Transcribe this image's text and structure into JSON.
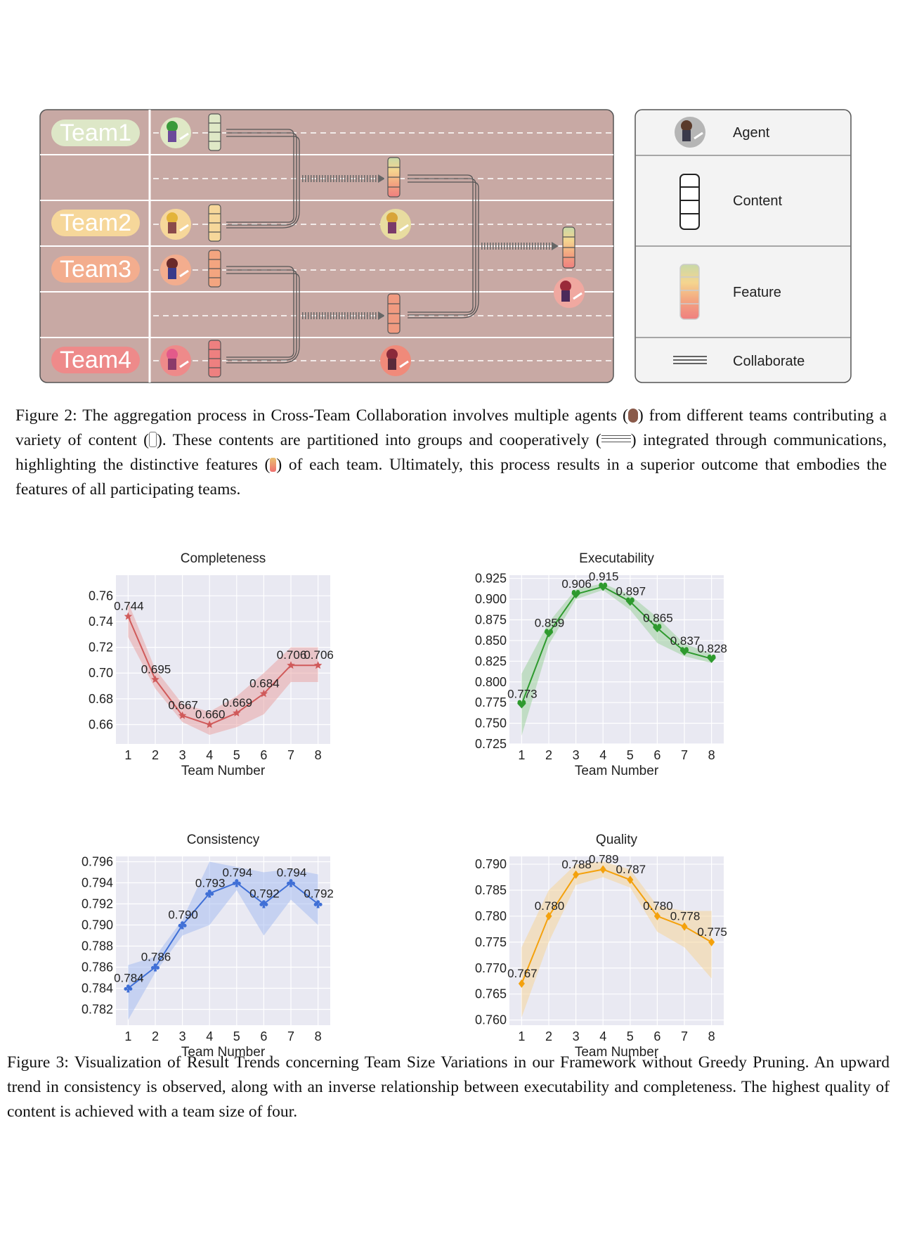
{
  "figure2": {
    "teams": [
      "Team1",
      "Team2",
      "Team3",
      "Team4"
    ],
    "legend": {
      "agent": "Agent",
      "content": "Content",
      "feature": "Feature",
      "collaborate": "Collaborate"
    },
    "colors": {
      "panel": "#c8a9a4",
      "team1": "#dde7c7",
      "team2": "#f6d79a",
      "team3": "#f3ad8e",
      "team4": "#ee8a8a"
    },
    "caption": {
      "p1": "Figure 2: The aggregation process in Cross-Team Collaboration involves multiple agents (",
      "p2": ") from different teams contributing a variety of content (",
      "p3": "). These contents are partitioned into groups and cooperatively (",
      "p4": ") integrated through communications, highlighting the distinctive features (",
      "p5": ") of each team. Ultimately, this process results in a superior outcome that embodies the features of all participating teams."
    }
  },
  "figure3": {
    "caption": "Figure 3: Visualization of Result Trends concerning Team Size Variations in our Framework without Greedy Pruning. An upward trend in consistency is observed, along with an inverse relationship between executability and completeness. The highest quality of content is achieved with a team size of four."
  },
  "chart_data": [
    {
      "type": "line",
      "title": "Completeness",
      "xlabel": "Team Number",
      "ylabel": "",
      "x": [
        1,
        2,
        3,
        4,
        5,
        6,
        7,
        8
      ],
      "values": [
        0.744,
        0.695,
        0.667,
        0.66,
        0.669,
        0.684,
        0.706,
        0.706
      ],
      "labels": [
        "0.744",
        "0.695",
        "0.667",
        "0.660",
        "0.669",
        "0.684",
        "0.706",
        "0.706"
      ],
      "band_low": [
        0.728,
        0.688,
        0.662,
        0.652,
        0.658,
        0.668,
        0.693,
        0.693
      ],
      "band_high": [
        0.755,
        0.703,
        0.676,
        0.67,
        0.682,
        0.7,
        0.72,
        0.72
      ],
      "ylim": [
        0.645,
        0.776
      ],
      "yticks": [
        0.66,
        0.68,
        0.7,
        0.72,
        0.74,
        0.76
      ],
      "yticklabels": [
        "0.66",
        "0.68",
        "0.70",
        "0.72",
        "0.74",
        "0.76"
      ],
      "color": "#d05a5a",
      "band_color": "#e9a6a6",
      "marker": "star",
      "grid": true
    },
    {
      "type": "line",
      "title": "Executability",
      "xlabel": "Team Number",
      "ylabel": "",
      "x": [
        1,
        2,
        3,
        4,
        5,
        6,
        7,
        8
      ],
      "values": [
        0.773,
        0.859,
        0.906,
        0.915,
        0.897,
        0.865,
        0.837,
        0.828
      ],
      "labels": [
        "0.773",
        "0.859",
        "0.906",
        "0.915",
        "0.897",
        "0.865",
        "0.837",
        "0.828"
      ],
      "band_low": [
        0.735,
        0.845,
        0.9,
        0.911,
        0.887,
        0.847,
        0.831,
        0.823
      ],
      "band_high": [
        0.81,
        0.872,
        0.912,
        0.919,
        0.905,
        0.878,
        0.846,
        0.834
      ],
      "ylim": [
        0.725,
        0.929
      ],
      "yticks": [
        0.725,
        0.75,
        0.775,
        0.8,
        0.825,
        0.85,
        0.875,
        0.9,
        0.925
      ],
      "yticklabels": [
        "0.725",
        "0.750",
        "0.775",
        "0.800",
        "0.825",
        "0.850",
        "0.875",
        "0.900",
        "0.925"
      ],
      "color": "#2e9a2e",
      "band_color": "#9fd29f",
      "marker": "heart",
      "grid": true
    },
    {
      "type": "line",
      "title": "Consistency",
      "xlabel": "Team Number",
      "ylabel": "",
      "x": [
        1,
        2,
        3,
        4,
        5,
        6,
        7,
        8
      ],
      "values": [
        0.784,
        0.786,
        0.79,
        0.793,
        0.794,
        0.792,
        0.794,
        0.792
      ],
      "labels": [
        "0.784",
        "0.786",
        "0.790",
        "0.793",
        "0.794",
        "0.792",
        "0.794",
        "0.792"
      ],
      "band_low": [
        0.781,
        0.7855,
        0.789,
        0.79,
        0.7933,
        0.789,
        0.7924,
        0.79
      ],
      "band_high": [
        0.7862,
        0.787,
        0.7905,
        0.796,
        0.7955,
        0.795,
        0.7953,
        0.7948
      ],
      "ylim": [
        0.7805,
        0.7965
      ],
      "yticks": [
        0.782,
        0.784,
        0.786,
        0.788,
        0.79,
        0.792,
        0.794,
        0.796
      ],
      "yticklabels": [
        "0.782",
        "0.784",
        "0.786",
        "0.788",
        "0.790",
        "0.792",
        "0.794",
        "0.796"
      ],
      "color": "#3f6fd6",
      "band_color": "#a8bdf0",
      "marker": "club",
      "grid": true
    },
    {
      "type": "line",
      "title": "Quality",
      "xlabel": "Team Number",
      "ylabel": "",
      "x": [
        1,
        2,
        3,
        4,
        5,
        6,
        7,
        8
      ],
      "values": [
        0.767,
        0.78,
        0.788,
        0.789,
        0.787,
        0.78,
        0.778,
        0.775
      ],
      "labels": [
        "0.767",
        "0.780",
        "0.788",
        "0.789",
        "0.787",
        "0.780",
        "0.778",
        "0.775"
      ],
      "band_low": [
        0.7605,
        0.775,
        0.786,
        0.7875,
        0.7855,
        0.777,
        0.774,
        0.768
      ],
      "band_high": [
        0.774,
        0.785,
        0.79,
        0.7905,
        0.789,
        0.782,
        0.781,
        0.781
      ],
      "ylim": [
        0.759,
        0.7915
      ],
      "yticks": [
        0.76,
        0.765,
        0.77,
        0.775,
        0.78,
        0.785,
        0.79
      ],
      "yticklabels": [
        "0.760",
        "0.765",
        "0.770",
        "0.775",
        "0.780",
        "0.785",
        "0.790"
      ],
      "color": "#f4a10c",
      "band_color": "#f6d59a",
      "marker": "diamond",
      "grid": true
    }
  ]
}
